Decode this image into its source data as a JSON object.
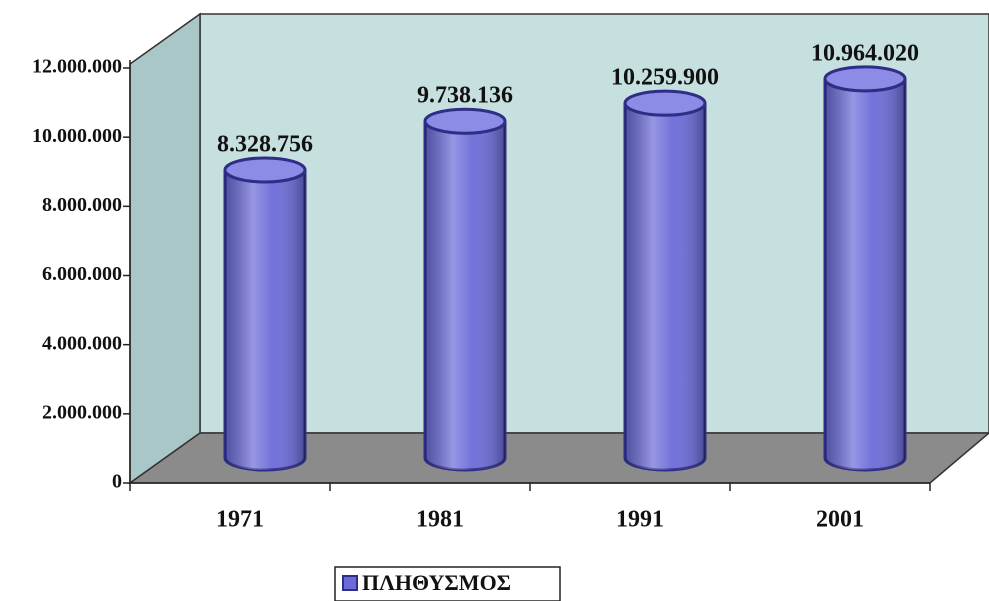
{
  "chart_data": {
    "type": "bar3d_cylinder",
    "categories": [
      "1971",
      "1981",
      "1991",
      "2001"
    ],
    "series": [
      {
        "name": "ΠΛΗΘΥΣΜΟΣ",
        "color": "#6a6ad8",
        "values": [
          8328756,
          9738136,
          10259900,
          10964020
        ],
        "value_labels": [
          "8.328.756",
          "9.738.136",
          "10.259.900",
          "10.964.020"
        ]
      }
    ],
    "ylim": [
      0,
      12000000
    ],
    "yticks": [
      0,
      {
        "value": 2000000,
        "label": "2.000.000"
      },
      {
        "value": 4000000,
        "label": "4.000.000"
      },
      {
        "value": 6000000,
        "label": "6.000.000"
      },
      {
        "value": 8000000,
        "label": "8.000.000"
      },
      {
        "value": 10000000,
        "label": "10.000.000"
      },
      {
        "value": 12000000,
        "label": "12.000.000"
      }
    ],
    "legend": "bottom"
  }
}
